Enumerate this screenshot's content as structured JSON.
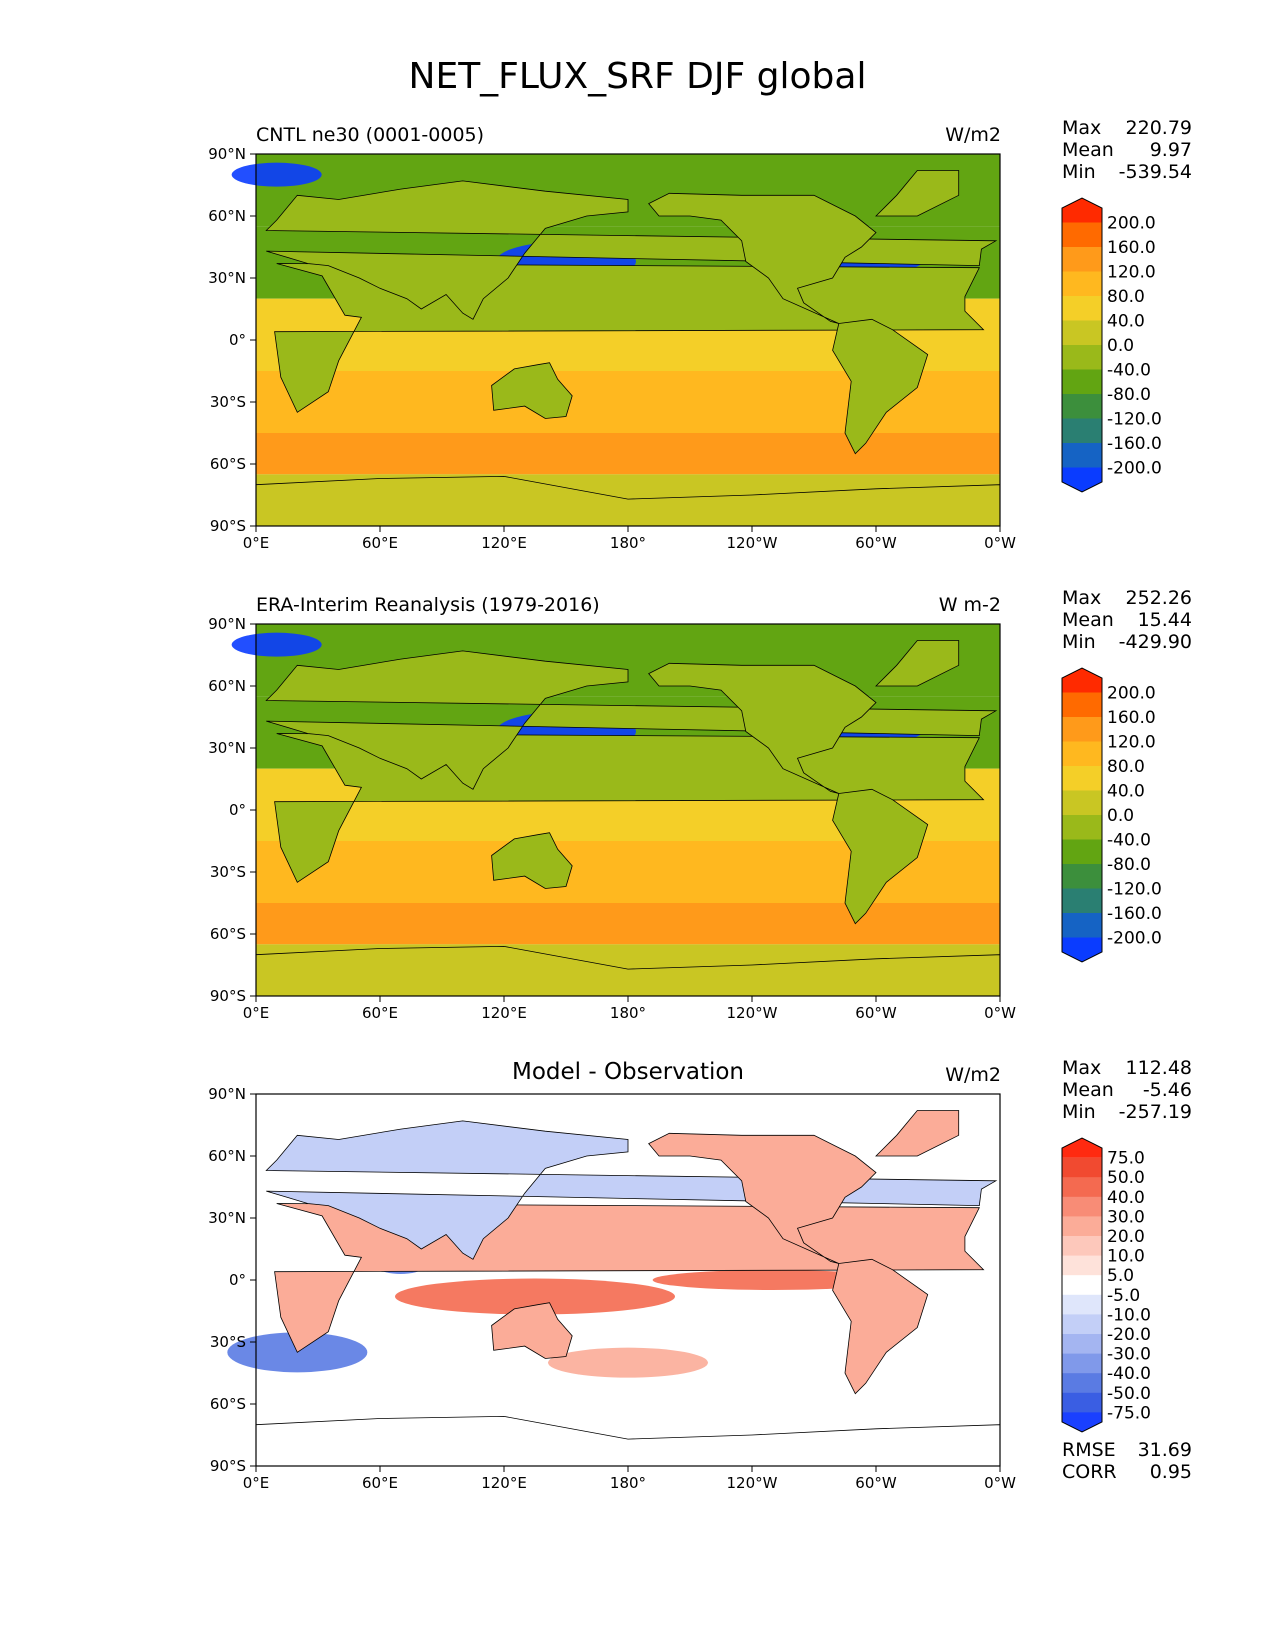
{
  "title": "NET_FLUX_SRF DJF global",
  "lat_ticks": [
    "90°N",
    "60°N",
    "30°N",
    "0°",
    "30°S",
    "60°S",
    "90°S"
  ],
  "lon_ticks": [
    "0°E",
    "60°E",
    "120°E",
    "180°",
    "120°W",
    "60°W",
    "0°W"
  ],
  "panels": [
    {
      "title": "CNTL ne30 (0001-0005)",
      "units": "W/m2",
      "stats": {
        "max_label": "Max",
        "max": "220.79",
        "mean_label": "Mean",
        "mean": "9.97",
        "min_label": "Min",
        "min": "-539.54"
      },
      "colorbar": {
        "labels": [
          "200.0",
          "160.0",
          "120.0",
          "80.0",
          "40.0",
          "0.0",
          "-40.0",
          "-80.0",
          "-120.0",
          "-160.0",
          "-200.0"
        ],
        "colors": [
          "#ff2a00",
          "#ff6a00",
          "#ff9a1a",
          "#ffb81f",
          "#f4cf28",
          "#c9c623",
          "#9ab91a",
          "#62a512",
          "#3c8f3c",
          "#2a7f72",
          "#1563c4",
          "#0a3cff"
        ]
      }
    },
    {
      "title": "ERA-Interim Reanalysis (1979-2016)",
      "units": "W m-2",
      "stats": {
        "max_label": "Max",
        "max": "252.26",
        "mean_label": "Mean",
        "mean": "15.44",
        "min_label": "Min",
        "min": "-429.90"
      },
      "colorbar": {
        "labels": [
          "200.0",
          "160.0",
          "120.0",
          "80.0",
          "40.0",
          "0.0",
          "-40.0",
          "-80.0",
          "-120.0",
          "-160.0",
          "-200.0"
        ],
        "colors": [
          "#ff2a00",
          "#ff6a00",
          "#ff9a1a",
          "#ffb81f",
          "#f4cf28",
          "#c9c623",
          "#9ab91a",
          "#62a512",
          "#3c8f3c",
          "#2a7f72",
          "#1563c4",
          "#0a3cff"
        ]
      }
    },
    {
      "title": "Model - Observation",
      "units": "W/m2",
      "stats": {
        "max_label": "Max",
        "max": "112.48",
        "mean_label": "Mean",
        "mean": "-5.46",
        "min_label": "Min",
        "min": "-257.19"
      },
      "colorbar": {
        "labels": [
          "75.0",
          "50.0",
          "40.0",
          "30.0",
          "20.0",
          "10.0",
          "5.0",
          "-5.0",
          "-10.0",
          "-20.0",
          "-30.0",
          "-40.0",
          "-50.0",
          "-75.0"
        ],
        "colors": [
          "#ff2a10",
          "#f14a30",
          "#f46a50",
          "#f88c76",
          "#fbac98",
          "#fdc8bb",
          "#fee2da",
          "#ffffff",
          "#dfe6fb",
          "#c3cff7",
          "#a4b5f1",
          "#8099ea",
          "#5a7be3",
          "#3a5ee3",
          "#1a40ff"
        ]
      }
    }
  ],
  "footer": {
    "rmse_label": "RMSE",
    "rmse": "31.69",
    "corr_label": "CORR",
    "corr": "0.95"
  },
  "map_colors": {
    "land": "#9ab91a",
    "ocean_tropical": "#f4cf28",
    "ocean_subtropical": "#ffb81f",
    "ocean_south": "#ff9a1a",
    "ocean_north": "#62a512",
    "gulf": "#0a3cff",
    "antarctic": "#c9c623",
    "diff_white": "#ffffff",
    "diff_red": "#f46a50",
    "diff_blue": "#5a7be3",
    "diff_pink": "#fbac98",
    "diff_lightblue": "#c3cff7"
  }
}
